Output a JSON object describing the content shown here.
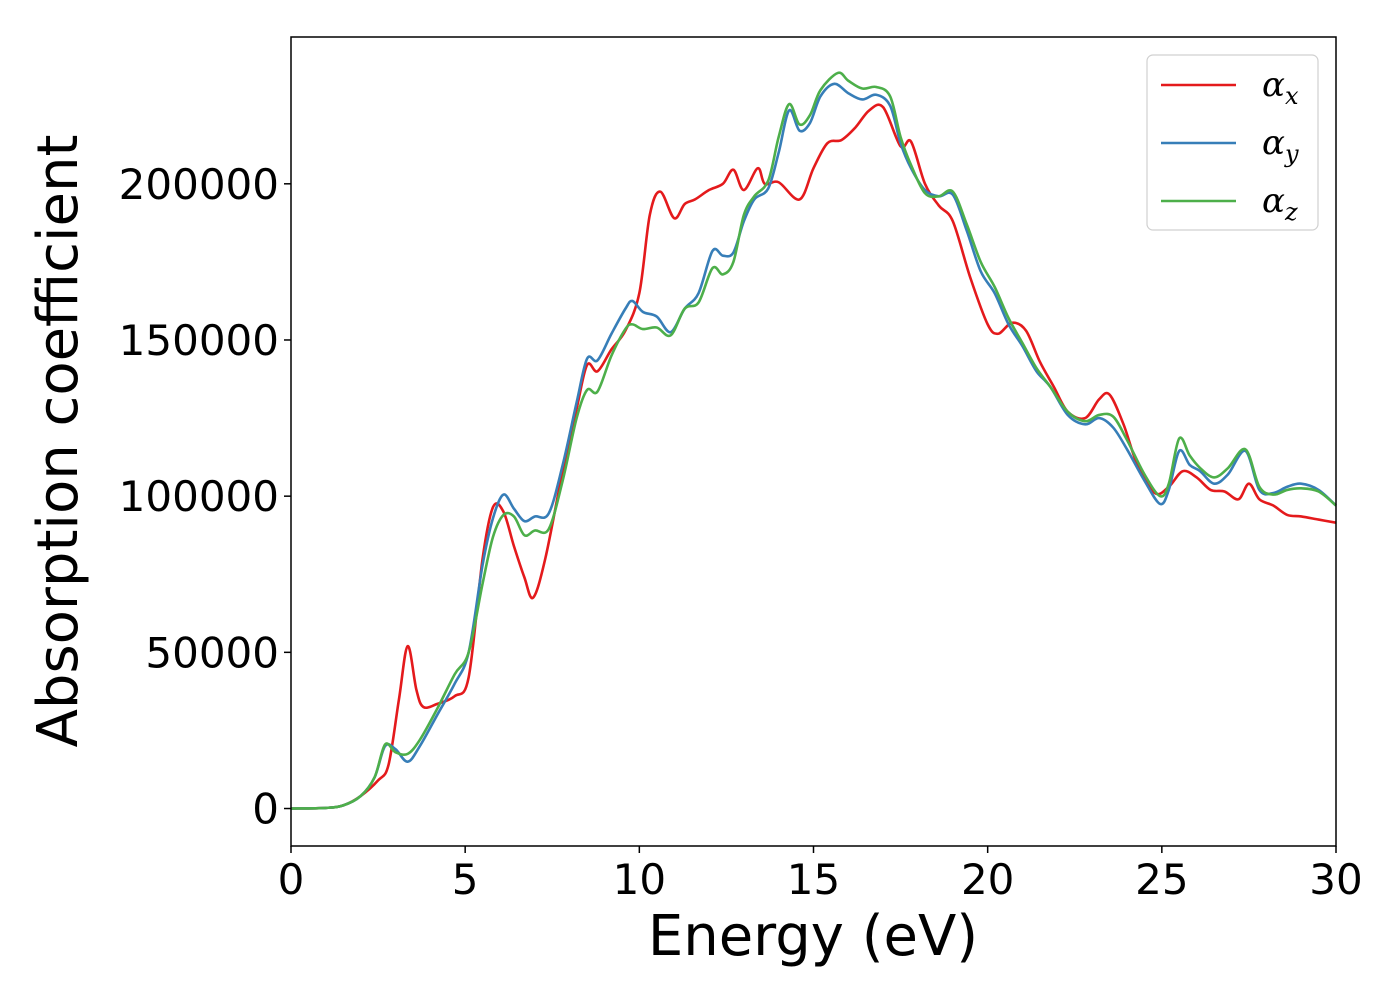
{
  "chart_data": {
    "type": "line",
    "title": "",
    "xlabel": "Energy (eV)",
    "ylabel": "Absorption coefficient",
    "xlim": [
      0,
      30
    ],
    "ylim": [
      -12000,
      247000
    ],
    "xticks": [
      0,
      5,
      10,
      15,
      20,
      25,
      30
    ],
    "yticks": [
      0,
      50000,
      100000,
      150000,
      200000
    ],
    "grid": false,
    "legend_position": "top-right",
    "series": [
      {
        "name": "α_x",
        "symbol": "α",
        "subscript": "x",
        "color": "#e41a1c",
        "points": [
          [
            0,
            0
          ],
          [
            1,
            200
          ],
          [
            1.5,
            1000
          ],
          [
            2,
            4000
          ],
          [
            2.5,
            9000
          ],
          [
            2.8,
            14000
          ],
          [
            3.1,
            35000
          ],
          [
            3.35,
            52000
          ],
          [
            3.6,
            38000
          ],
          [
            3.8,
            32500
          ],
          [
            4.2,
            33500
          ],
          [
            4.7,
            36000
          ],
          [
            5.1,
            42000
          ],
          [
            5.5,
            80000
          ],
          [
            5.8,
            96500
          ],
          [
            6.1,
            95000
          ],
          [
            6.4,
            84000
          ],
          [
            6.7,
            74000
          ],
          [
            6.95,
            67500
          ],
          [
            7.3,
            80000
          ],
          [
            7.8,
            108000
          ],
          [
            8.2,
            128000
          ],
          [
            8.5,
            142000
          ],
          [
            8.8,
            140000
          ],
          [
            9.2,
            147000
          ],
          [
            9.6,
            153000
          ],
          [
            10.0,
            165000
          ],
          [
            10.3,
            190000
          ],
          [
            10.6,
            197500
          ],
          [
            11.0,
            189000
          ],
          [
            11.3,
            193500
          ],
          [
            11.6,
            195000
          ],
          [
            12.0,
            198000
          ],
          [
            12.4,
            200000
          ],
          [
            12.7,
            204500
          ],
          [
            13.0,
            198000
          ],
          [
            13.4,
            205000
          ],
          [
            13.6,
            200000
          ],
          [
            14.0,
            200500
          ],
          [
            14.6,
            195000
          ],
          [
            15.0,
            205000
          ],
          [
            15.4,
            213000
          ],
          [
            15.8,
            214000
          ],
          [
            16.2,
            218000
          ],
          [
            16.6,
            223500
          ],
          [
            17.0,
            224500
          ],
          [
            17.5,
            212000
          ],
          [
            17.8,
            213500
          ],
          [
            18.2,
            200000
          ],
          [
            18.6,
            193000
          ],
          [
            19.0,
            188000
          ],
          [
            19.5,
            170000
          ],
          [
            20.0,
            155000
          ],
          [
            20.3,
            152000
          ],
          [
            20.7,
            155500
          ],
          [
            21.1,
            153000
          ],
          [
            21.5,
            143000
          ],
          [
            21.9,
            135000
          ],
          [
            22.3,
            127000
          ],
          [
            22.8,
            125000
          ],
          [
            23.2,
            131000
          ],
          [
            23.5,
            132500
          ],
          [
            23.9,
            123000
          ],
          [
            24.3,
            110000
          ],
          [
            24.8,
            101000
          ],
          [
            25.2,
            103000
          ],
          [
            25.6,
            108000
          ],
          [
            26.0,
            106000
          ],
          [
            26.4,
            102000
          ],
          [
            26.8,
            101500
          ],
          [
            27.2,
            99000
          ],
          [
            27.5,
            104000
          ],
          [
            27.8,
            99000
          ],
          [
            28.2,
            97000
          ],
          [
            28.6,
            94000
          ],
          [
            29.0,
            93500
          ],
          [
            29.5,
            92500
          ],
          [
            30.0,
            91500
          ]
        ]
      },
      {
        "name": "α_y",
        "symbol": "α",
        "subscript": "y",
        "color": "#377eb8",
        "points": [
          [
            0,
            0
          ],
          [
            1,
            200
          ],
          [
            1.5,
            1000
          ],
          [
            2,
            4000
          ],
          [
            2.4,
            10000
          ],
          [
            2.7,
            20000
          ],
          [
            3.0,
            19000
          ],
          [
            3.35,
            15000
          ],
          [
            3.7,
            20000
          ],
          [
            4.2,
            30000
          ],
          [
            4.7,
            40000
          ],
          [
            5.1,
            50000
          ],
          [
            5.5,
            78000
          ],
          [
            5.8,
            93000
          ],
          [
            6.1,
            100500
          ],
          [
            6.4,
            96000
          ],
          [
            6.7,
            92000
          ],
          [
            7.0,
            93500
          ],
          [
            7.4,
            94500
          ],
          [
            7.8,
            110000
          ],
          [
            8.2,
            130000
          ],
          [
            8.5,
            144000
          ],
          [
            8.8,
            143500
          ],
          [
            9.2,
            152000
          ],
          [
            9.6,
            160000
          ],
          [
            9.8,
            162500
          ],
          [
            10.1,
            159000
          ],
          [
            10.5,
            157500
          ],
          [
            10.9,
            152500
          ],
          [
            11.3,
            160000
          ],
          [
            11.7,
            165000
          ],
          [
            12.1,
            178500
          ],
          [
            12.4,
            177000
          ],
          [
            12.7,
            178000
          ],
          [
            13.0,
            188000
          ],
          [
            13.3,
            195000
          ],
          [
            13.7,
            198500
          ],
          [
            14.0,
            210000
          ],
          [
            14.3,
            223500
          ],
          [
            14.6,
            217000
          ],
          [
            14.9,
            219500
          ],
          [
            15.2,
            228000
          ],
          [
            15.6,
            232000
          ],
          [
            16.0,
            229000
          ],
          [
            16.4,
            227000
          ],
          [
            16.8,
            228500
          ],
          [
            17.2,
            225000
          ],
          [
            17.5,
            213000
          ],
          [
            17.8,
            205000
          ],
          [
            18.2,
            198000
          ],
          [
            18.6,
            196000
          ],
          [
            19.0,
            196500
          ],
          [
            19.4,
            185000
          ],
          [
            19.8,
            172000
          ],
          [
            20.2,
            165000
          ],
          [
            20.6,
            155000
          ],
          [
            21.0,
            148000
          ],
          [
            21.4,
            140000
          ],
          [
            21.8,
            135000
          ],
          [
            22.3,
            126000
          ],
          [
            22.8,
            123000
          ],
          [
            23.2,
            125000
          ],
          [
            23.6,
            122000
          ],
          [
            24.0,
            115000
          ],
          [
            24.5,
            105000
          ],
          [
            24.95,
            97500
          ],
          [
            25.2,
            102000
          ],
          [
            25.5,
            114500
          ],
          [
            25.8,
            110000
          ],
          [
            26.1,
            108000
          ],
          [
            26.5,
            104000
          ],
          [
            26.9,
            107000
          ],
          [
            27.4,
            114500
          ],
          [
            27.8,
            102000
          ],
          [
            28.2,
            101000
          ],
          [
            28.6,
            103000
          ],
          [
            29.0,
            104000
          ],
          [
            29.5,
            102000
          ],
          [
            30.0,
            97000
          ]
        ]
      },
      {
        "name": "α_z",
        "symbol": "α",
        "subscript": "z",
        "color": "#4daf4a",
        "points": [
          [
            0,
            0
          ],
          [
            1,
            200
          ],
          [
            1.5,
            1000
          ],
          [
            2,
            4000
          ],
          [
            2.4,
            10000
          ],
          [
            2.7,
            20500
          ],
          [
            3.0,
            18000
          ],
          [
            3.35,
            17500
          ],
          [
            3.7,
            22000
          ],
          [
            4.2,
            32000
          ],
          [
            4.7,
            43000
          ],
          [
            5.1,
            50000
          ],
          [
            5.5,
            72000
          ],
          [
            5.8,
            87000
          ],
          [
            6.1,
            94000
          ],
          [
            6.4,
            93500
          ],
          [
            6.7,
            87500
          ],
          [
            7.0,
            89000
          ],
          [
            7.4,
            89500
          ],
          [
            7.8,
            105000
          ],
          [
            8.2,
            125000
          ],
          [
            8.5,
            134000
          ],
          [
            8.8,
            133500
          ],
          [
            9.2,
            145000
          ],
          [
            9.6,
            153500
          ],
          [
            9.8,
            155000
          ],
          [
            10.1,
            153500
          ],
          [
            10.5,
            154000
          ],
          [
            10.9,
            151500
          ],
          [
            11.3,
            160000
          ],
          [
            11.7,
            162000
          ],
          [
            12.1,
            173000
          ],
          [
            12.4,
            171000
          ],
          [
            12.7,
            175000
          ],
          [
            13.0,
            190000
          ],
          [
            13.3,
            196000
          ],
          [
            13.7,
            201000
          ],
          [
            14.0,
            215000
          ],
          [
            14.3,
            225500
          ],
          [
            14.6,
            219000
          ],
          [
            14.9,
            222000
          ],
          [
            15.2,
            230000
          ],
          [
            15.7,
            235500
          ],
          [
            16.0,
            233000
          ],
          [
            16.4,
            230500
          ],
          [
            16.8,
            231000
          ],
          [
            17.2,
            228000
          ],
          [
            17.5,
            215000
          ],
          [
            17.8,
            206000
          ],
          [
            18.2,
            197000
          ],
          [
            18.6,
            196000
          ],
          [
            19.0,
            197500
          ],
          [
            19.4,
            187000
          ],
          [
            19.8,
            175000
          ],
          [
            20.2,
            167000
          ],
          [
            20.6,
            157000
          ],
          [
            21.0,
            149000
          ],
          [
            21.4,
            141000
          ],
          [
            21.8,
            135000
          ],
          [
            22.3,
            127000
          ],
          [
            22.8,
            124000
          ],
          [
            23.2,
            126000
          ],
          [
            23.6,
            125500
          ],
          [
            24.0,
            118000
          ],
          [
            24.5,
            107000
          ],
          [
            24.95,
            100000
          ],
          [
            25.2,
            104000
          ],
          [
            25.5,
            118500
          ],
          [
            25.8,
            113000
          ],
          [
            26.1,
            109000
          ],
          [
            26.5,
            106000
          ],
          [
            26.9,
            109000
          ],
          [
            27.4,
            115000
          ],
          [
            27.8,
            103000
          ],
          [
            28.2,
            100500
          ],
          [
            28.6,
            102000
          ],
          [
            29.0,
            102500
          ],
          [
            29.5,
            101500
          ],
          [
            30.0,
            97000
          ]
        ]
      }
    ]
  }
}
